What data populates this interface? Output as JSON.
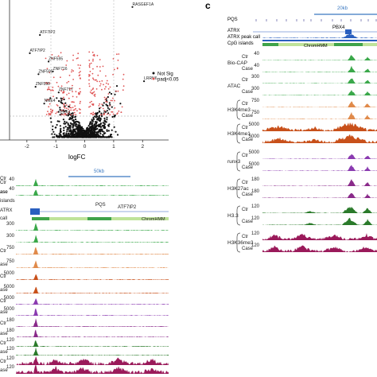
{
  "panel_c_letter": "c",
  "colors": {
    "axis": "#333333",
    "grid": "#999999",
    "not_sig": "#111111",
    "sig": "#e05555",
    "scale_bar": "#3a78c0",
    "pqs": "#6a6aaa",
    "peak_call": "#2a5fbf",
    "cpg": "#2f8f2f",
    "chromhmm_light": "#bfe39a",
    "chromhmm_dark": "#3fa34a",
    "bio_cap": "#3aa84a",
    "atac": "#3aa84a",
    "h3k4me3": "#e08a4a",
    "h3k4me1": "#c8501a",
    "runx3": "#8a3ab0",
    "h3k27ac": "#8a2a8a",
    "h33": "#2a7a2a",
    "h3k36me3": "#9a1a5a"
  },
  "chart_data": [
    {
      "id": "volcano",
      "type": "scatter",
      "title": "",
      "xlabel": "logFC",
      "ylabel": "",
      "xlim": [
        -2.6,
        2.9
      ],
      "xticks": [
        "-2",
        "-1",
        "0",
        "1",
        "2"
      ],
      "legend_position": "right",
      "series": [
        {
          "name": "Not Sig",
          "color": "#111111"
        },
        {
          "name": "padj<0.05",
          "color": "#e05555"
        }
      ],
      "annotations": [
        {
          "label": "RASGEF1A",
          "x": 1.65,
          "y": 0.95
        },
        {
          "label": "ATF7IP2",
          "x": -1.55,
          "y": 0.75
        },
        {
          "label": "ATF7IP2",
          "x": -1.9,
          "y": 0.62
        },
        {
          "label": "ZNF595",
          "x": -1.25,
          "y": 0.56
        },
        {
          "label": "ZNF716",
          "x": -1.1,
          "y": 0.49
        },
        {
          "label": "ZNF595",
          "x": -1.6,
          "y": 0.47
        },
        {
          "label": "ZNF595",
          "x": -1.7,
          "y": 0.38
        },
        {
          "label": "ZNF717",
          "x": -0.9,
          "y": 0.34
        },
        {
          "label": "LRRN6",
          "x": 2.05,
          "y": 0.42
        },
        {
          "label": "NME4",
          "x": -1.4,
          "y": 0.26
        },
        {
          "label": "PBX4",
          "x": -0.85,
          "y": 0.18
        }
      ]
    },
    {
      "id": "tracks-left",
      "type": "area",
      "scale_label": "50kb",
      "pqs_label": "PQS",
      "gene_label": "ATF7IP2",
      "chromhmm_label": "ChromHMM",
      "cut_labels": [
        "Ctr",
        "ase",
        "islands",
        "ATRX",
        "call"
      ],
      "tracks": [
        {
          "row": "Ctr",
          "scale": "40",
          "color": "#3aa84a"
        },
        {
          "row": "ase",
          "scale": "40",
          "color": "#3aa84a"
        },
        {
          "row": "",
          "scale": "300",
          "color": "#3aa84a"
        },
        {
          "row": "",
          "scale": "300",
          "color": "#3aa84a"
        },
        {
          "row": "Ctr",
          "scale": "750",
          "color": "#e08a4a"
        },
        {
          "row": "ase",
          "scale": "750",
          "color": "#e08a4a"
        },
        {
          "row": "Ctr",
          "scale": "5000",
          "color": "#c8501a"
        },
        {
          "row": "ase",
          "scale": "5000",
          "color": "#c8501a"
        },
        {
          "row": "Ctr",
          "scale": "5000",
          "color": "#8a3ab0"
        },
        {
          "row": "ase",
          "scale": "5000",
          "color": "#8a3ab0"
        },
        {
          "row": "Ctr",
          "scale": "180",
          "color": "#8a2a8a"
        },
        {
          "row": "ase",
          "scale": "180",
          "color": "#8a2a8a"
        },
        {
          "row": "Ctr",
          "scale": "120",
          "color": "#2a7a2a"
        },
        {
          "row": "ase",
          "scale": "120",
          "color": "#2a7a2a"
        },
        {
          "row": "Ctr",
          "scale": "120",
          "color": "#9a1a5a"
        },
        {
          "row": "ase",
          "scale": "120",
          "color": "#9a1a5a"
        }
      ]
    },
    {
      "id": "tracks-right",
      "type": "area",
      "scale_label": "20kb",
      "pqs_label": "PQS",
      "gene_label": "PBX4",
      "atrx_label": "ATRX",
      "peak_call_label": "ATRX peak call",
      "cpg_label": "CpG islands",
      "chromhmm_label": "ChromHMM",
      "tracks": [
        {
          "group": "Bio-CAP",
          "ctr_scale": "40",
          "case_scale": "40",
          "color": "#3aa84a"
        },
        {
          "group": "ATAC",
          "ctr_scale": "300",
          "case_scale": "300",
          "color": "#3aa84a"
        },
        {
          "group": "H3K4me3",
          "ctr_scale": "750",
          "case_scale": "750",
          "color": "#e08a4a"
        },
        {
          "group": "H3K4me1",
          "ctr_scale": "5000",
          "case_scale": "5000",
          "color": "#c8501a"
        },
        {
          "group": "runx3",
          "ctr_scale": "5000",
          "case_scale": "5000",
          "color": "#8a3ab0"
        },
        {
          "group": "H3K27ac",
          "ctr_scale": "180",
          "case_scale": "180",
          "color": "#8a2a8a"
        },
        {
          "group": "H3.3",
          "ctr_scale": "120",
          "case_scale": "120",
          "color": "#2a7a2a"
        },
        {
          "group": "H3K36me3",
          "ctr_scale": "120",
          "case_scale": "120",
          "color": "#9a1a5a"
        }
      ],
      "row_labels": {
        "ctr": "Ctr",
        "case": "Case"
      }
    }
  ]
}
